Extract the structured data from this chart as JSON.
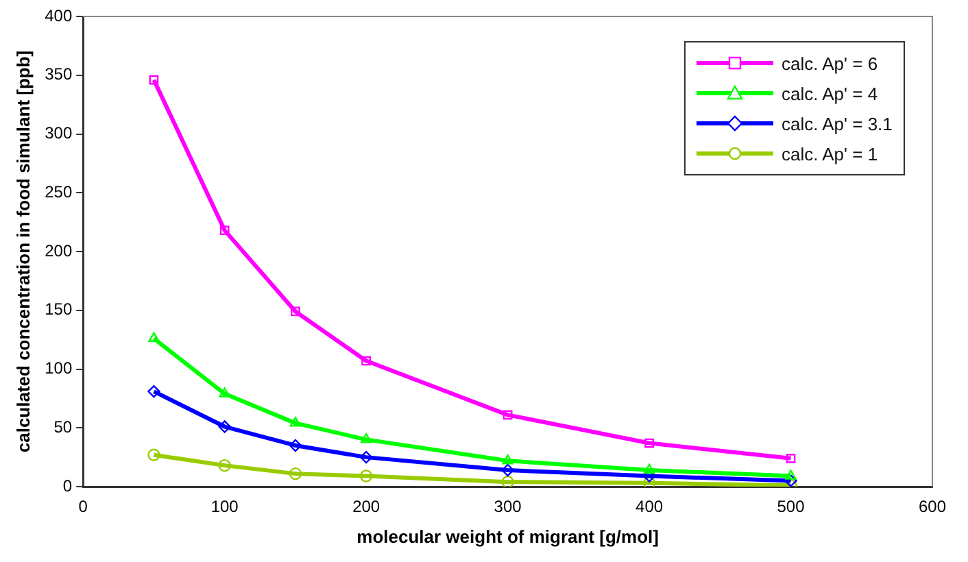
{
  "chart_data": {
    "type": "line",
    "xlabel": "molecular weight of migrant [g/mol]",
    "ylabel": "calculated concentration in food simulant [ppb]",
    "x": [
      50,
      100,
      150,
      200,
      300,
      400,
      500
    ],
    "series": [
      {
        "name": "calc. Ap' = 6",
        "color": "#ff00ff",
        "marker": "square",
        "values": [
          346,
          218,
          149,
          107,
          61,
          37,
          24
        ]
      },
      {
        "name": "calc. Ap' = 4",
        "color": "#00ff00",
        "marker": "triangle",
        "values": [
          126,
          79,
          54,
          40,
          22,
          14,
          9
        ]
      },
      {
        "name": "calc. Ap' = 3.1",
        "color": "#0000ff",
        "marker": "diamond",
        "values": [
          81,
          51,
          35,
          25,
          14,
          9,
          5
        ]
      },
      {
        "name": "calc. Ap' = 1",
        "color": "#99cc00",
        "marker": "circle",
        "values": [
          27,
          18,
          11,
          9,
          4,
          3,
          1
        ]
      }
    ],
    "xlim": [
      0,
      600
    ],
    "xticks": [
      0,
      100,
      200,
      300,
      400,
      500,
      600
    ],
    "ylim": [
      0,
      400
    ],
    "yticks": [
      0,
      50,
      100,
      150,
      200,
      250,
      300,
      350,
      400
    ],
    "grid": false,
    "legend": "top right",
    "line_style": "solid"
  }
}
